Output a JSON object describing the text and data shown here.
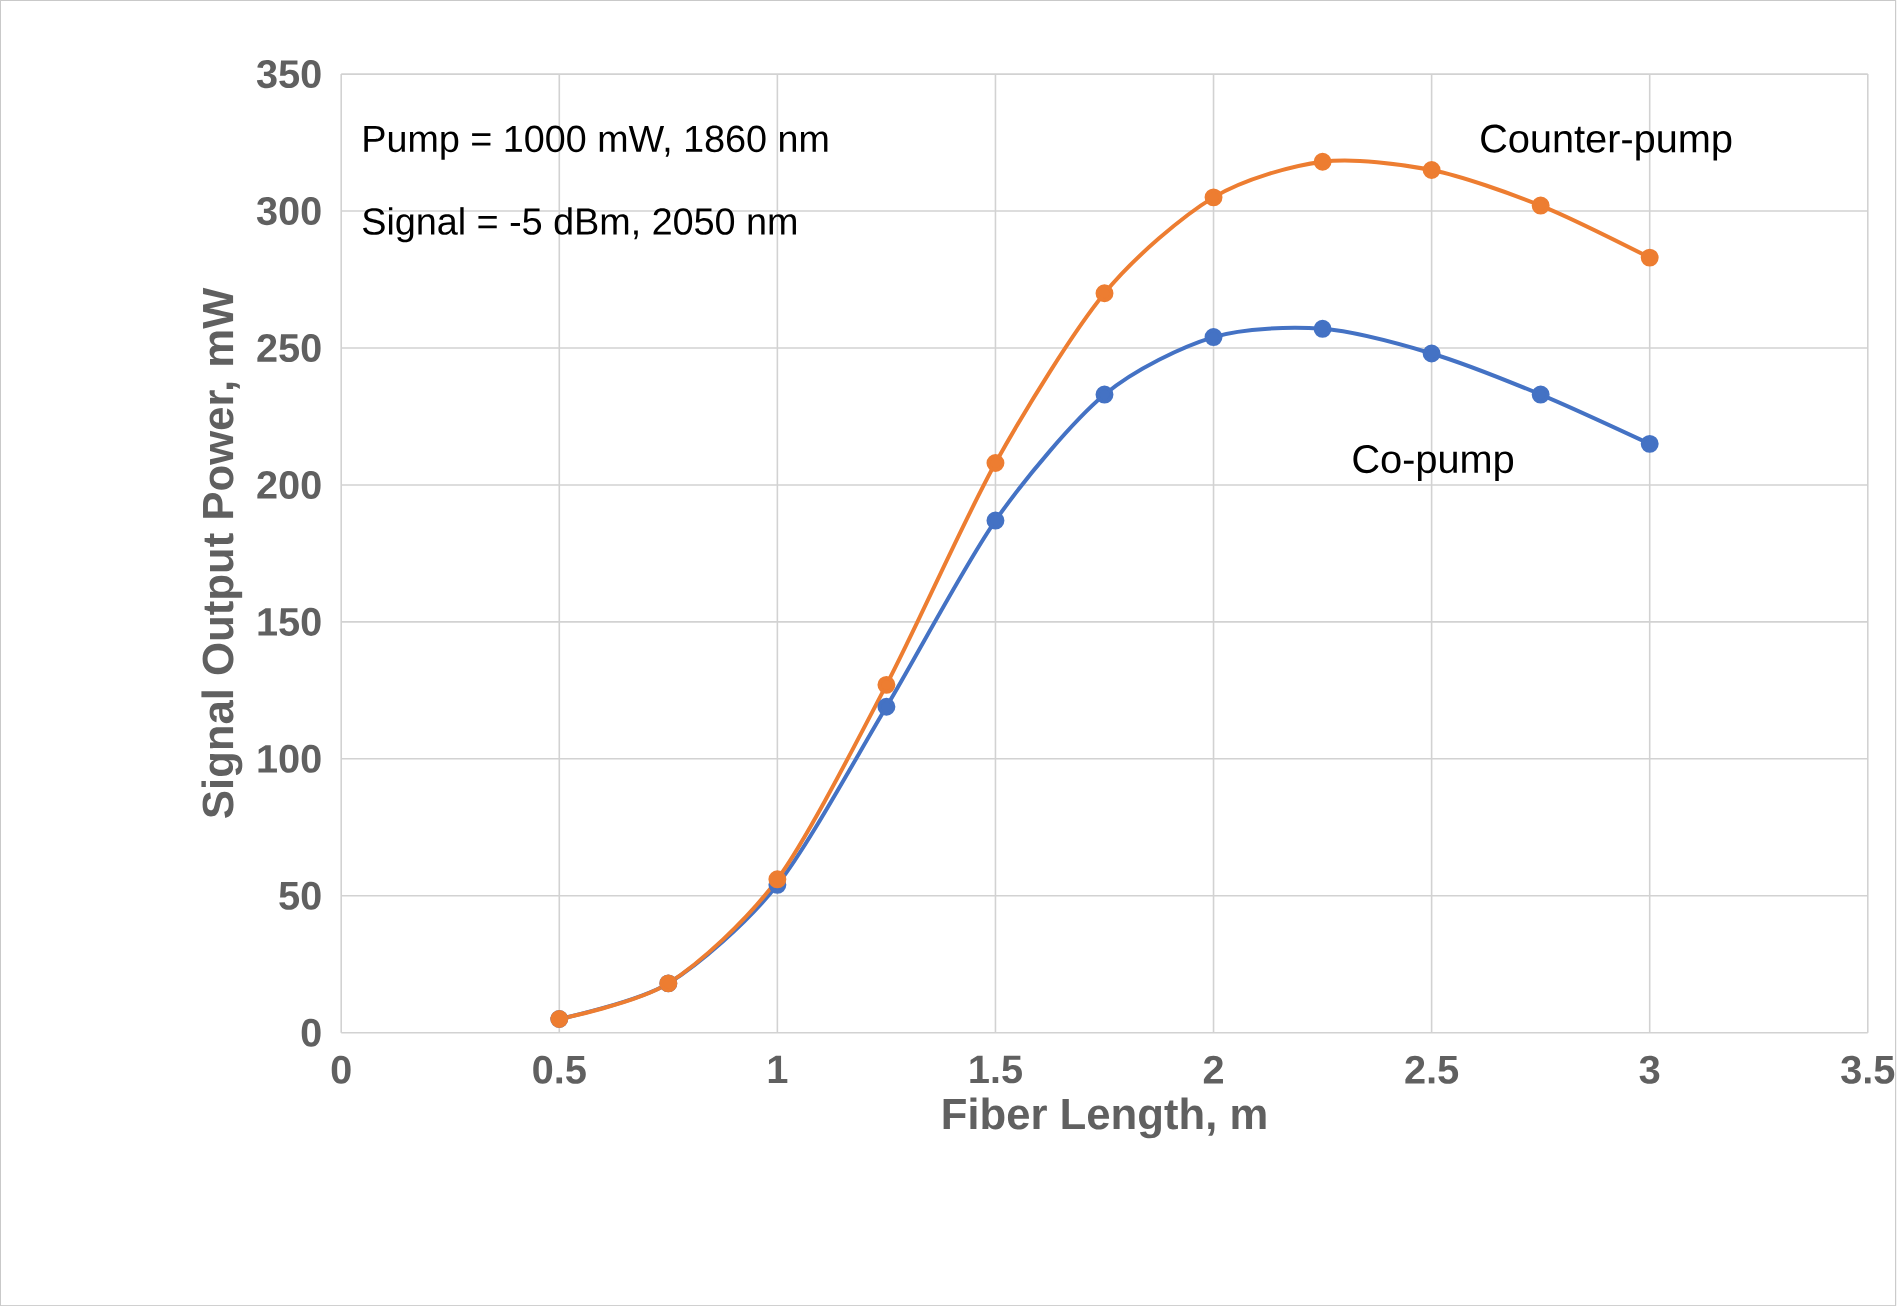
{
  "chart_data": {
    "type": "line",
    "xlabel": "Fiber Length, m",
    "ylabel": "Signal Output Power, mW",
    "x": [
      0.5,
      0.75,
      1,
      1.25,
      1.5,
      1.75,
      2,
      2.25,
      2.5,
      2.75,
      3
    ],
    "series": [
      {
        "name": "Co-pump",
        "color": "#4472c4",
        "values": [
          5,
          18,
          54,
          119,
          187,
          233,
          254,
          257,
          248,
          233,
          215
        ]
      },
      {
        "name": "Counter-pump",
        "color": "#ed7d31",
        "values": [
          5,
          18,
          56,
          127,
          208,
          270,
          305,
          318,
          315,
          302,
          283
        ]
      }
    ],
    "annotations": [
      "Pump = 1000 mW, 1860 nm",
      "Signal = -5 dBm, 2050 nm"
    ],
    "xlim": [
      0,
      3.5
    ],
    "xticks": [
      0,
      0.5,
      1,
      1.5,
      2,
      2.5,
      3,
      3.5
    ],
    "ylim": [
      0,
      350
    ],
    "yticks": [
      0,
      50,
      100,
      150,
      200,
      250,
      300,
      350
    ],
    "grid": true,
    "marker": "circle",
    "line_style": "solid"
  }
}
